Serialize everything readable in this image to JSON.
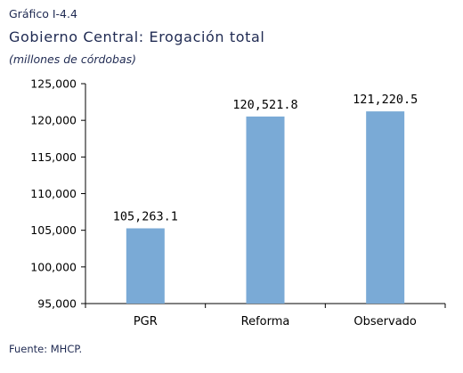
{
  "header": {
    "kicker": "Gráfico I-4.4",
    "title": "Gobierno Central: Erogación total",
    "subtitle": "(millones de córdobas)"
  },
  "footer": {
    "source": "Fuente: MHCP."
  },
  "colors": {
    "bar": "#7aaad6",
    "axis": "#000000",
    "title_text": "#1f2a52"
  },
  "chart_data": {
    "type": "bar",
    "title": "Gobierno Central: Erogación total",
    "subtitle": "(millones de córdobas)",
    "xlabel": "",
    "ylabel": "",
    "categories": [
      "PGR",
      "Reforma",
      "Observado"
    ],
    "values": [
      105263.1,
      120521.8,
      121220.5
    ],
    "value_labels": [
      "105,263.1",
      "120,521.8",
      "121,220.5"
    ],
    "ylim": [
      95000,
      125000
    ],
    "yticks": [
      95000,
      100000,
      105000,
      110000,
      115000,
      120000,
      125000
    ],
    "ytick_labels": [
      "95,000",
      "100,000",
      "105,000",
      "110,000",
      "115,000",
      "120,000",
      "125,000"
    ],
    "grid": false,
    "legend": "none"
  }
}
